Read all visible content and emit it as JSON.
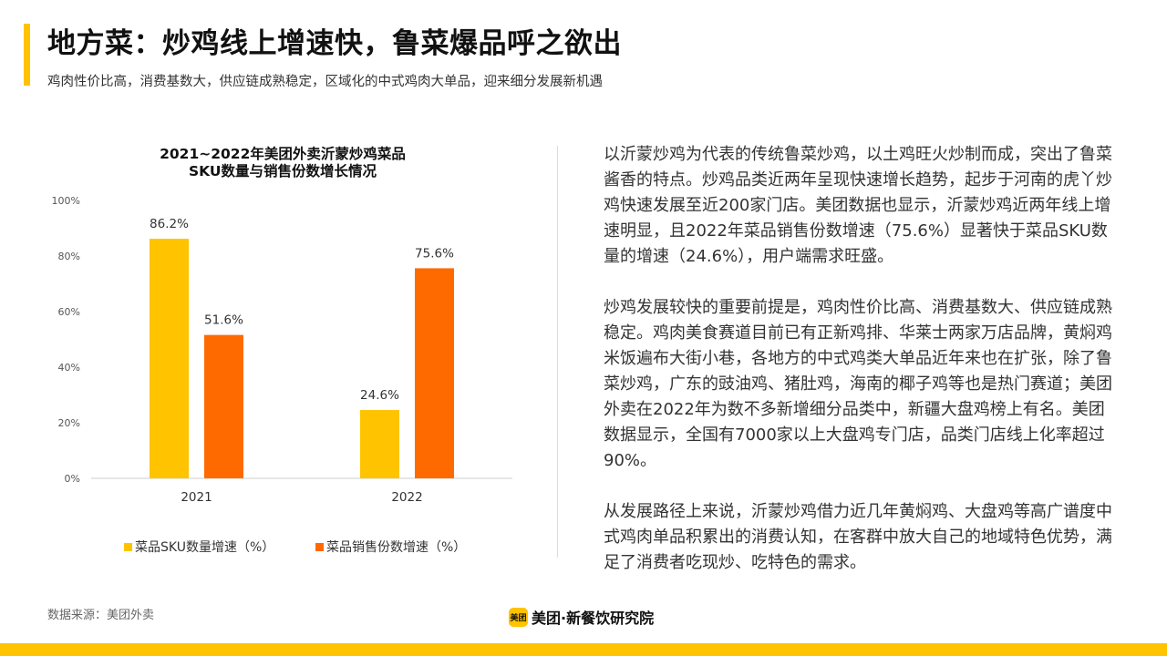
{
  "header": {
    "title": "地方菜：炒鸡线上增速快，鲁菜爆品呼之欲出",
    "subtitle": "鸡肉性价比高，消费基数大，供应链成熟稳定，区域化的中式鸡肉大单品，迎来细分发展新机遇"
  },
  "chart_data": {
    "type": "bar",
    "title_lines": [
      "2021~2022年美团外卖沂蒙炒鸡菜品",
      "SKU数量与销售份数增长情况"
    ],
    "categories": [
      "2021",
      "2022"
    ],
    "series": [
      {
        "name": "菜品SKU数量增速（%）",
        "color": "#ffc300",
        "values": [
          86.2,
          24.6
        ],
        "labels": [
          "86.2%",
          "24.6%"
        ]
      },
      {
        "name": "菜品销售份数增速（%）",
        "color": "#ff6a00",
        "values": [
          51.6,
          75.6
        ],
        "labels": [
          "51.6%",
          "75.6%"
        ]
      }
    ],
    "ylim": [
      0,
      100
    ],
    "yticks": [
      0,
      20,
      40,
      60,
      80,
      100
    ],
    "ytick_labels": [
      "0%",
      "20%",
      "40%",
      "60%",
      "80%",
      "100%"
    ],
    "grid": false,
    "legend_position": "bottom"
  },
  "body": {
    "paragraphs": [
      "以沂蒙炒鸡为代表的传统鲁菜炒鸡，以土鸡旺火炒制而成，突出了鲁菜酱香的特点。炒鸡品类近两年呈现快速增长趋势，起步于河南的虎丫炒鸡快速发展至近200家门店。美团数据也显示，沂蒙炒鸡近两年线上增速明显，且2022年菜品销售份数增速（75.6%）显著快于菜品SKU数量的增速（24.6%），用户端需求旺盛。",
      "炒鸡发展较快的重要前提是，鸡肉性价比高、消费基数大、供应链成熟稳定。鸡肉美食赛道目前已有正新鸡排、华莱士两家万店品牌，黄焖鸡米饭遍布大街小巷，各地方的中式鸡类大单品近年来也在扩张，除了鲁菜炒鸡，广东的豉油鸡、猪肚鸡，海南的椰子鸡等也是热门赛道；美团外卖在2022年为数不多新增细分品类中，新疆大盘鸡榜上有名。美团数据显示，全国有7000家以上大盘鸡专门店，品类门店线上化率超过90%。",
      "从发展路径上来说，沂蒙炒鸡借力近几年黄焖鸡、大盘鸡等高广谱度中式鸡肉单品积累出的消费认知，在客群中放大自己的地域特色优势，满足了消费者吃现炒、吃特色的需求。"
    ]
  },
  "footer": {
    "source": "数据来源：美团外卖",
    "logo_mark": "美团",
    "logo_text": "美团·新餐饮研究院"
  }
}
